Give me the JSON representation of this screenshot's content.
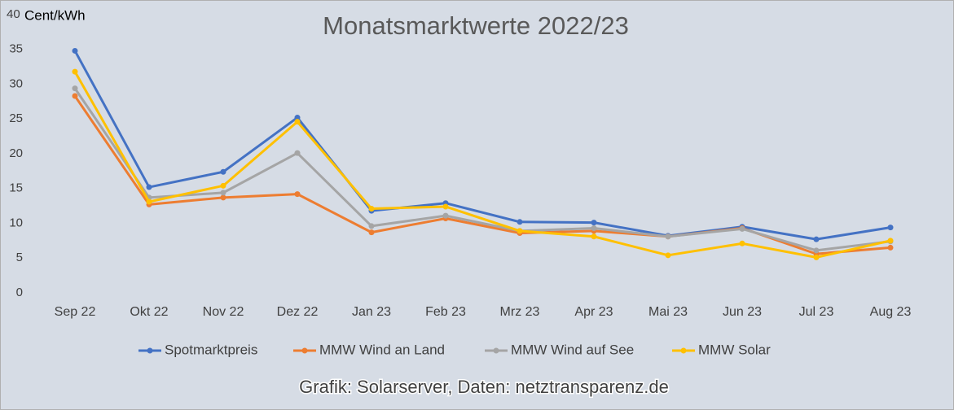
{
  "chart_data": {
    "type": "line",
    "title": "Monatsmarktwerte 2022/23",
    "y_label": "Cent/kWh",
    "source": "Grafik: Solarserver, Daten: netztransparenz.de",
    "categories": [
      "Sep 22",
      "Okt 22",
      "Nov 22",
      "Dez 22",
      "Jan 23",
      "Feb 23",
      "Mrz 23",
      "Apr 23",
      "Mai 23",
      "Jun 23",
      "Jul 23",
      "Aug 23"
    ],
    "series": [
      {
        "name": "Spotmarktpreis",
        "color": "#4472c4",
        "values": [
          34.8,
          15.2,
          17.4,
          25.2,
          11.8,
          12.9,
          10.2,
          10.1,
          8.2,
          9.5,
          7.7,
          9.4
        ]
      },
      {
        "name": "MMW Wind an Land",
        "color": "#ed7d31",
        "values": [
          28.3,
          12.7,
          13.7,
          14.2,
          8.7,
          10.7,
          8.6,
          8.9,
          8.1,
          9.3,
          5.6,
          6.5
        ]
      },
      {
        "name": "MMW Wind auf See",
        "color": "#a5a5a5",
        "values": [
          29.4,
          13.7,
          14.4,
          20.1,
          9.6,
          11.1,
          8.9,
          9.3,
          8.1,
          9.2,
          6.1,
          7.4
        ]
      },
      {
        "name": "MMW Solar",
        "color": "#ffc000",
        "values": [
          31.8,
          13.1,
          15.4,
          24.6,
          12.1,
          12.4,
          8.9,
          8.1,
          5.4,
          7.1,
          5.1,
          7.5
        ]
      }
    ],
    "ylim": [
      0,
      40
    ],
    "yticks": [
      0,
      5,
      10,
      15,
      20,
      25,
      30,
      35,
      40
    ],
    "grid": false,
    "legend": "bottom"
  }
}
